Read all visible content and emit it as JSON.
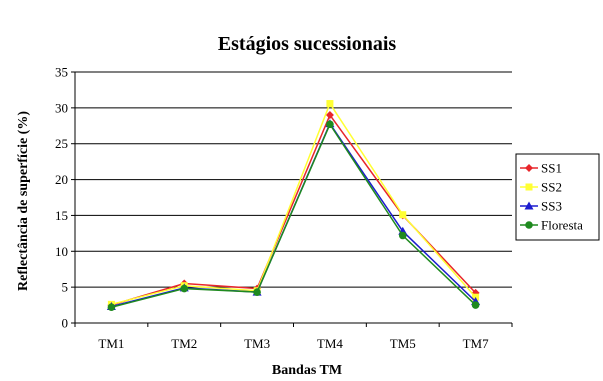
{
  "chart_data": {
    "type": "line",
    "title": "Estágios sucessionais",
    "xlabel": "Bandas TM",
    "ylabel": "Reflectância de superfície (%)",
    "categories": [
      "TM1",
      "TM2",
      "TM3",
      "TM4",
      "TM5",
      "TM7"
    ],
    "ylim": [
      0,
      35
    ],
    "yticks": [
      0,
      5,
      10,
      15,
      20,
      25,
      30,
      35
    ],
    "grid": true,
    "legend_position": "right",
    "series": [
      {
        "name": "SS1",
        "color": "#e8262b",
        "marker": "diamond",
        "values": [
          2.5,
          5.5,
          4.8,
          29.0,
          15.0,
          4.2
        ]
      },
      {
        "name": "SS2",
        "color": "#ffff33",
        "marker": "square",
        "values": [
          2.6,
          5.2,
          4.5,
          30.6,
          15.1,
          3.6
        ]
      },
      {
        "name": "SS3",
        "color": "#1c1ccf",
        "marker": "triangle",
        "values": [
          2.3,
          4.9,
          4.3,
          27.8,
          12.8,
          3.0
        ]
      },
      {
        "name": "Floresta",
        "color": "#1f8a1f",
        "marker": "circle",
        "values": [
          2.2,
          4.8,
          4.3,
          27.7,
          12.2,
          2.5
        ]
      }
    ]
  }
}
